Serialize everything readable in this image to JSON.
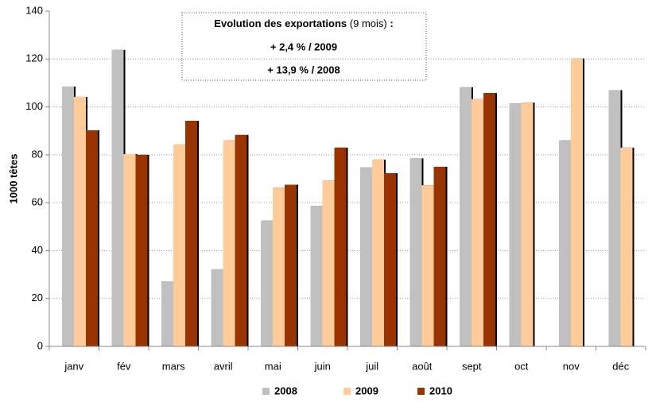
{
  "chart_data": {
    "type": "bar",
    "annotation": {
      "title_bold": "Evolution des exportations",
      "title_note": "(9 mois)",
      "title_colon": ":",
      "lines": [
        "+ 2,4 % / 2009",
        "+ 13,9 % / 2008"
      ]
    },
    "y_label": "1000 têtes",
    "categories": [
      "janv",
      "fév",
      "mars",
      "avril",
      "mai",
      "juin",
      "juil",
      "août",
      "sept",
      "oct",
      "nov",
      "déc"
    ],
    "series": [
      {
        "name": "2008",
        "color": "#c0c0c0",
        "values": [
          108.5,
          123.8,
          27.2,
          32.2,
          52.5,
          58.7,
          74.8,
          78.5,
          108.2,
          101.5,
          86,
          107
        ]
      },
      {
        "name": "2009",
        "color": "#ffcc99",
        "values": [
          104.2,
          80.3,
          84.3,
          86,
          66.3,
          69.3,
          78,
          67.3,
          103.3,
          101.8,
          120.2,
          83
        ]
      },
      {
        "name": "2010",
        "color": "#993300",
        "values": [
          90.2,
          80,
          94.2,
          88.3,
          67.5,
          83,
          72.3,
          75,
          105.8,
          null,
          null,
          null
        ]
      }
    ],
    "ylim": [
      0,
      140
    ],
    "yticks": [
      0,
      20,
      40,
      60,
      80,
      100,
      120,
      140
    ],
    "grid": true
  }
}
